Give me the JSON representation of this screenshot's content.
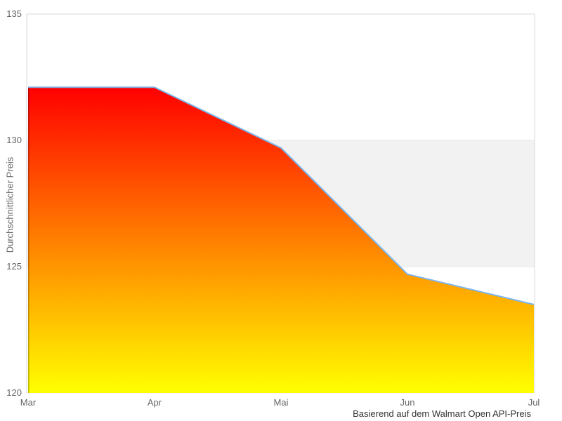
{
  "chart_data": {
    "type": "area",
    "title": "",
    "categories": [
      "Mar",
      "Apr",
      "Mai",
      "Jun",
      "Jul"
    ],
    "series": [
      {
        "name": "Durchschnittlicher Preis",
        "values": [
          132.1,
          132.1,
          129.7,
          124.7,
          123.5
        ]
      }
    ],
    "xlabel": "",
    "ylabel": "Durchschnittlicher Preis",
    "ylim": [
      120,
      135
    ],
    "y_ticks": [
      120,
      125,
      130,
      135
    ],
    "plot_band": {
      "from": 125,
      "to": 130,
      "color": "#f2f2f2"
    },
    "colors": {
      "line": "#7cb5ec",
      "gradient_top": "#ff0000",
      "gradient_bottom": "#ffff00",
      "gridline": "#e6e6e6",
      "axis_line": "#d8d8d8",
      "tick_text": "#666666",
      "caption_text": "#333333"
    },
    "grid": "off",
    "legend": "none",
    "caption": "Basierend auf dem Walmart Open API-Preis"
  }
}
